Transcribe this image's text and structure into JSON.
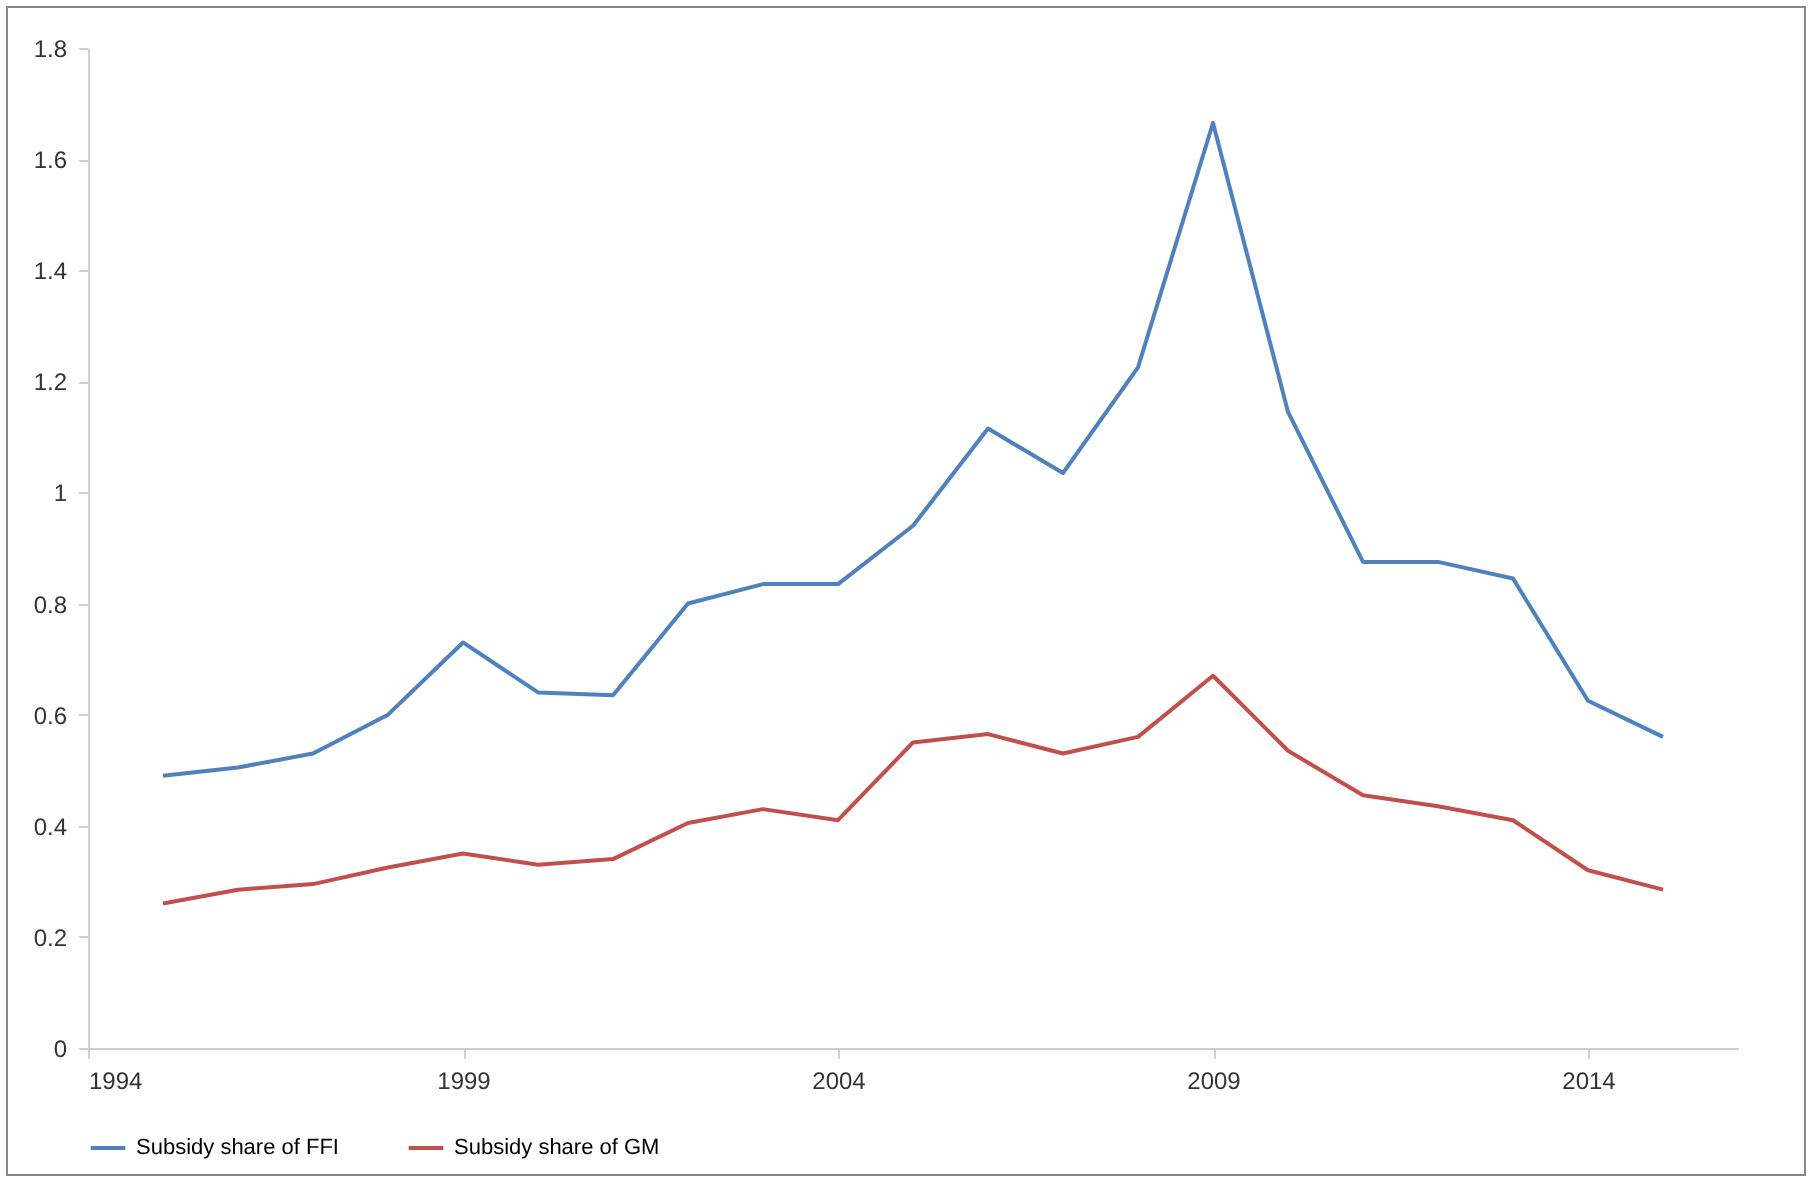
{
  "chart_data": {
    "type": "line",
    "x": [
      1995,
      1996,
      1997,
      1998,
      1999,
      2000,
      2001,
      2002,
      2003,
      2004,
      2005,
      2006,
      2007,
      2008,
      2009,
      2010,
      2011,
      2012,
      2013,
      2014,
      2015
    ],
    "series": [
      {
        "name": "Subsidy share of FFI",
        "color": "#4f81bd",
        "values": [
          0.49,
          0.505,
          0.53,
          0.6,
          0.73,
          0.64,
          0.635,
          0.8,
          0.835,
          0.835,
          0.94,
          1.115,
          1.035,
          1.225,
          1.665,
          1.145,
          0.875,
          0.875,
          0.845,
          0.625,
          0.56
        ]
      },
      {
        "name": "Subsidy share of GM",
        "color": "#c0504d",
        "values": [
          0.26,
          0.285,
          0.295,
          0.325,
          0.35,
          0.33,
          0.34,
          0.405,
          0.43,
          0.41,
          0.55,
          0.565,
          0.53,
          0.56,
          0.67,
          0.535,
          0.455,
          0.435,
          0.41,
          0.32,
          0.285
        ]
      }
    ],
    "xlim": [
      1994,
      2016
    ],
    "xticks": [
      1994,
      1999,
      2004,
      2009,
      2014
    ],
    "ylim": [
      0,
      1.8
    ],
    "yticks": [
      0,
      0.2,
      0.4,
      0.6,
      0.8,
      1,
      1.2,
      1.4,
      1.6,
      1.8
    ],
    "grid": false,
    "legend": "bottom",
    "marker": "none",
    "line_style": "solid"
  }
}
